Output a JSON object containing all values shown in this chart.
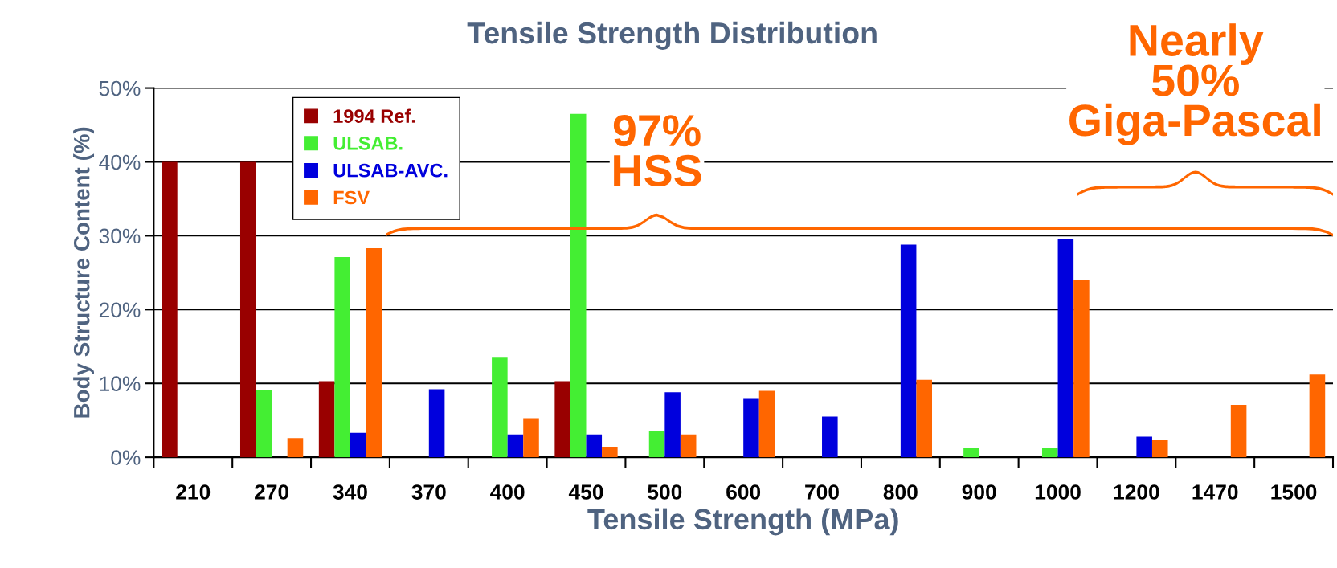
{
  "chart_data": {
    "type": "bar",
    "title": "Tensile Strength Distribution",
    "xlabel": "Tensile Strength (MPa)",
    "ylabel": "Body Structure Content (%)",
    "categories": [
      "210",
      "270",
      "340",
      "370",
      "400",
      "450",
      "500",
      "600",
      "700",
      "800",
      "900",
      "1000",
      "1200",
      "1470",
      "1500"
    ],
    "series": [
      {
        "name": "1994 Ref.",
        "color": "#990000",
        "values": [
          40,
          40,
          10.3,
          0,
          0,
          10.3,
          0,
          0,
          0,
          0,
          0,
          0,
          0,
          0,
          0
        ]
      },
      {
        "name": "ULSAB.",
        "color": "#44ee33",
        "values": [
          0,
          9.1,
          27.1,
          0,
          13.6,
          46.5,
          3.5,
          0,
          0,
          0,
          1.2,
          1.2,
          0,
          0,
          0
        ]
      },
      {
        "name": "ULSAB-AVC.",
        "color": "#0000dd",
        "values": [
          0,
          0,
          3.3,
          9.2,
          3.1,
          3.1,
          8.8,
          7.9,
          5.5,
          28.8,
          0,
          29.5,
          2.8,
          0,
          0
        ]
      },
      {
        "name": "FSV",
        "color": "#ff6600",
        "values": [
          0,
          2.6,
          28.3,
          0,
          5.3,
          1.4,
          3.1,
          9.0,
          0,
          10.5,
          0,
          24.0,
          2.3,
          7.1,
          11.2
        ]
      }
    ],
    "ylim": [
      0,
      50
    ],
    "yticks": [
      {
        "value": 0,
        "label": "0%"
      },
      {
        "value": 10,
        "label": "10%"
      },
      {
        "value": 20,
        "label": "20%"
      },
      {
        "value": 30,
        "label": "30%"
      },
      {
        "value": 40,
        "label": "40%"
      },
      {
        "value": 50,
        "label": "50%"
      }
    ],
    "grid": "y",
    "legend": "top left",
    "annotations": [
      "97%\nHSS",
      "Nearly\n50%\nGiga-Pascal"
    ]
  }
}
